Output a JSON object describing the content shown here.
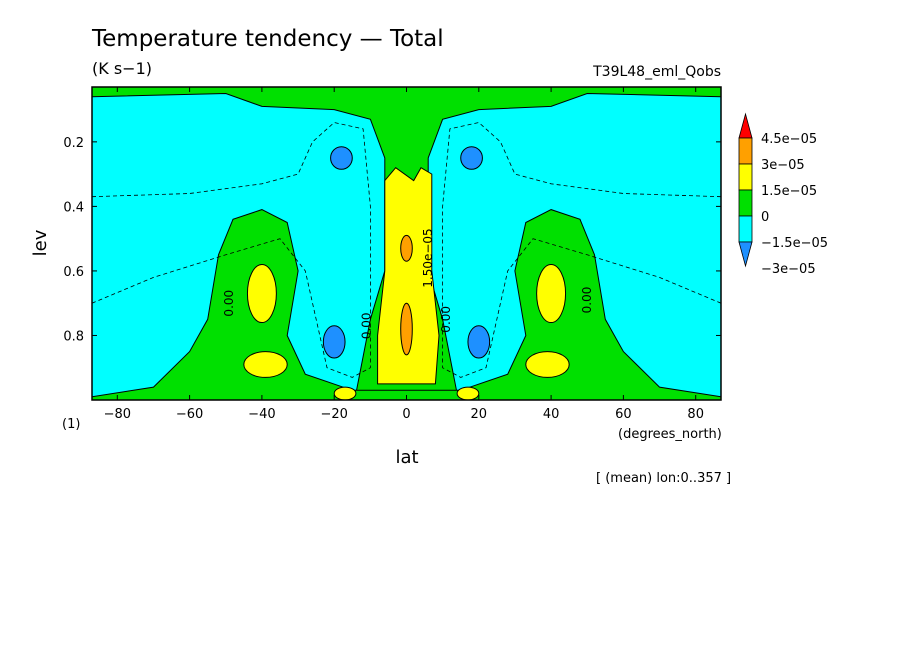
{
  "chart_data": {
    "type": "heatmap",
    "title": "Temperature tendency — Total",
    "units": "(K s−1)",
    "run_label": "T39L48_eml_Qobs",
    "xlabel": "lat",
    "x_units": "(degrees_north)",
    "ylabel": "lev",
    "y_units": "(1)",
    "footnote": "[ (mean) lon:0..357 ]",
    "xlim": [
      -87,
      87
    ],
    "ylim": [
      1.0,
      0.03
    ],
    "x_ticks": [
      -80,
      -60,
      -40,
      -20,
      0,
      20,
      40,
      60,
      80
    ],
    "x_tick_labels": [
      "−80",
      "−60",
      "−40",
      "−20",
      "0",
      "20",
      "40",
      "60",
      "80"
    ],
    "y_ticks": [
      0.2,
      0.4,
      0.6,
      0.8
    ],
    "y_tick_labels": [
      "0.2",
      "0.4",
      "0.6",
      "0.8"
    ],
    "grid": false,
    "colorbar": {
      "labels": [
        "4.5e−05",
        "3e−05",
        "1.5e−05",
        "0",
        "−1.5e−05",
        "−3e−05"
      ],
      "colors": [
        "#1e90ff",
        "#00ffff",
        "#00e000",
        "#ffff00",
        "#ffa000",
        "#ff0000"
      ],
      "bin_labels": [
        "< −3e-05",
        "−3e-05 to −1.5e-05",
        "−1.5e-05 to 0",
        "0 to 1.5e-05",
        "1.5e-05 to 3e-05",
        "> 3e-05"
      ]
    },
    "contour_labels": [
      {
        "text": "0.00",
        "lat": -48,
        "lev": 0.7
      },
      {
        "text": "0.00",
        "lat": -10,
        "lev": 0.77
      },
      {
        "text": "1.50e−05",
        "lat": 7,
        "lev": 0.56
      },
      {
        "text": "0.00",
        "lat": 12,
        "lev": 0.75
      },
      {
        "text": "0.00",
        "lat": 51,
        "lev": 0.69
      }
    ]
  }
}
